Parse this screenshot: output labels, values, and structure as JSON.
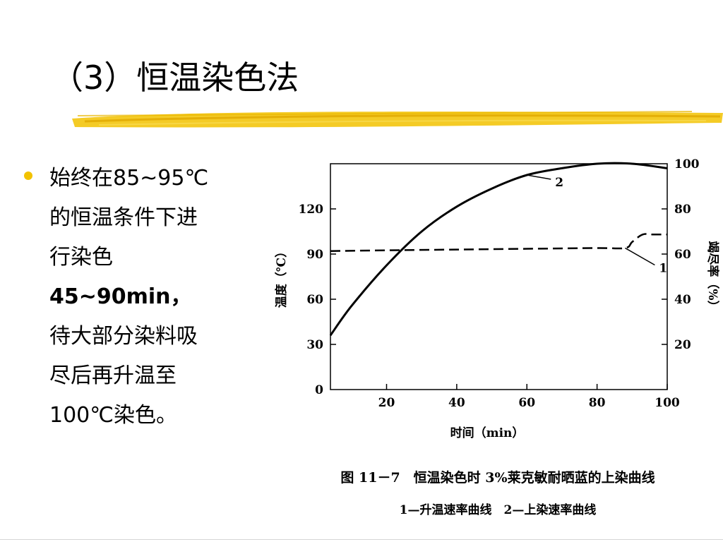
{
  "slide": {
    "title": "（3）恒温染色法",
    "accent_color": "#f2c200",
    "bullet": {
      "lines": [
        "始终在85~95℃",
        "的恒温条件下进",
        "行染色",
        "45~90min，",
        "待大部分染料吸",
        "尽后再升温至",
        "100℃染色。"
      ]
    },
    "caption": "图 11－7　恒温染色时 3%莱克敏耐晒蓝的上染曲线",
    "legend_caption": "1—升温速率曲线　2—上染速率曲线"
  },
  "chart_data": {
    "type": "line",
    "xlabel": "时间（min）",
    "ylabel": "温度（℃）",
    "y2label": "竭尽率（%）",
    "xlim": [
      4,
      100
    ],
    "ylim": [
      0,
      150
    ],
    "y2lim": [
      0,
      100
    ],
    "x_ticks": [
      20,
      40,
      60,
      80,
      100
    ],
    "y_ticks": [
      0,
      30,
      60,
      90,
      120
    ],
    "y2_ticks": [
      20,
      40,
      60,
      80,
      100
    ],
    "series": [
      {
        "name": "1",
        "axis": "left",
        "style": "dashed",
        "x": [
          4,
          20,
          40,
          60,
          80,
          88,
          90,
          93,
          96,
          100
        ],
        "y": [
          92,
          92.5,
          93,
          93.5,
          94,
          94,
          98,
          103,
          103,
          103
        ]
      },
      {
        "name": "2",
        "axis": "right",
        "style": "solid",
        "x": [
          4,
          10,
          20,
          30,
          40,
          50,
          60,
          70,
          80,
          90,
          100
        ],
        "y": [
          24,
          37,
          55,
          70,
          81,
          89,
          95,
          98,
          100,
          100,
          98
        ]
      }
    ]
  }
}
